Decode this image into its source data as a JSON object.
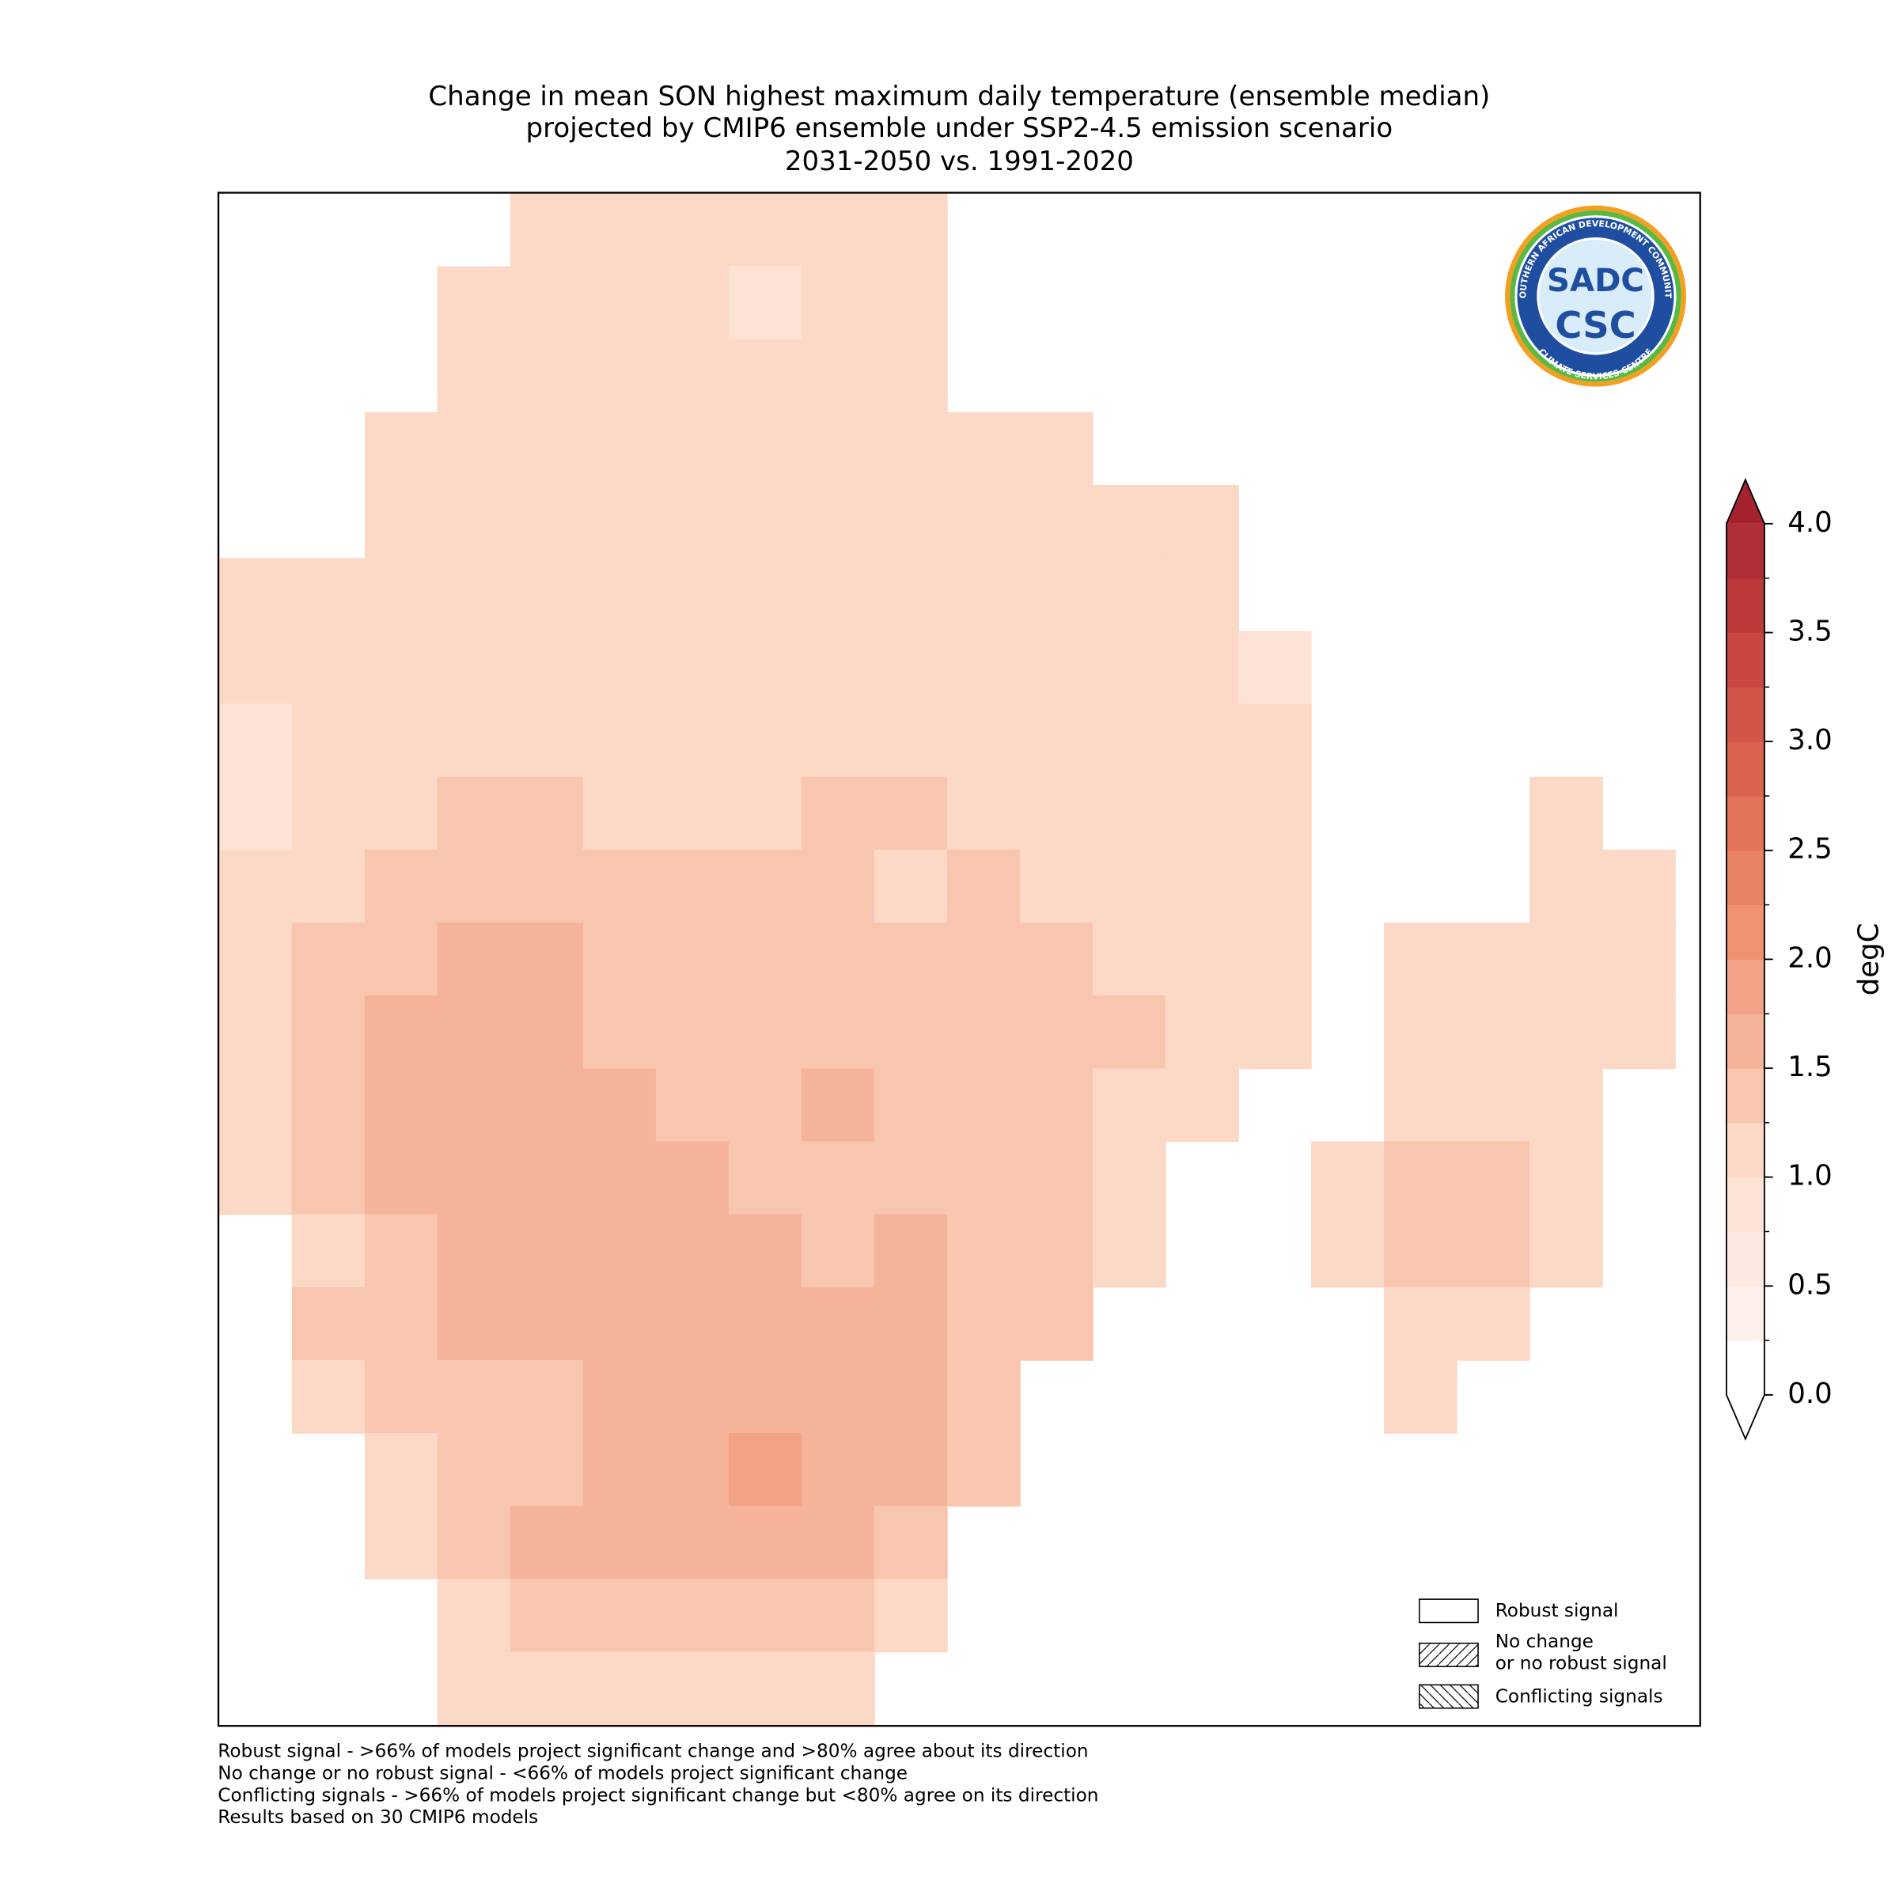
{
  "chart_data": {
    "type": "grid_map",
    "title": [
      "Change in mean SON highest maximum daily temperature (ensemble median)",
      "projected by CMIP6 ensemble under SSP2-4.5 emission scenario",
      "2031-2050 vs. 1991-2020"
    ],
    "values": [
      [
        null,
        null,
        null,
        null,
        1.0,
        1.0,
        1.0,
        1.0,
        1.0,
        1.0,
        null,
        null,
        null,
        null,
        null,
        null,
        null,
        null,
        null,
        null
      ],
      [
        null,
        null,
        null,
        1.0,
        1.0,
        1.0,
        1.0,
        0.9,
        1.0,
        1.1,
        null,
        null,
        null,
        null,
        null,
        null,
        null,
        null,
        null,
        null
      ],
      [
        null,
        null,
        null,
        1.0,
        1.0,
        1.0,
        1.0,
        1.0,
        1.0,
        1.0,
        null,
        null,
        null,
        null,
        null,
        null,
        null,
        null,
        null,
        null
      ],
      [
        null,
        null,
        1.0,
        1.0,
        1.0,
        1.0,
        1.0,
        1.0,
        1.0,
        1.1,
        1.1,
        1.1,
        null,
        null,
        null,
        null,
        null,
        null,
        null,
        null
      ],
      [
        null,
        null,
        1.1,
        1.1,
        1.1,
        1.0,
        1.0,
        1.0,
        1.0,
        1.0,
        1.1,
        1.1,
        1.1,
        1.0,
        null,
        null,
        null,
        null,
        null,
        null
      ],
      [
        1.0,
        1.0,
        1.0,
        1.1,
        1.2,
        1.1,
        1.1,
        1.1,
        1.1,
        1.1,
        1.1,
        1.1,
        1.1,
        1.0,
        null,
        null,
        null,
        null,
        null,
        null
      ],
      [
        1.0,
        1.0,
        1.1,
        1.1,
        1.2,
        1.1,
        1.1,
        1.1,
        1.1,
        1.1,
        1.1,
        1.2,
        1.1,
        1.1,
        0.9,
        null,
        null,
        null,
        null,
        null
      ],
      [
        0.9,
        1.0,
        1.1,
        1.2,
        1.1,
        1.2,
        1.2,
        1.2,
        1.2,
        1.2,
        1.2,
        1.2,
        1.1,
        1.1,
        1.0,
        null,
        null,
        null,
        null,
        null
      ],
      [
        0.9,
        1.1,
        1.2,
        1.3,
        1.3,
        1.2,
        1.2,
        1.2,
        1.3,
        1.3,
        1.2,
        1.2,
        1.1,
        1.1,
        1.0,
        null,
        null,
        null,
        1.0,
        null
      ],
      [
        1.1,
        1.2,
        1.3,
        1.3,
        1.4,
        1.3,
        1.3,
        1.3,
        1.3,
        1.2,
        1.3,
        1.2,
        1.1,
        1.1,
        1.0,
        null,
        null,
        null,
        1.0,
        1.0
      ],
      [
        1.2,
        1.3,
        1.4,
        1.5,
        1.5,
        1.4,
        1.4,
        1.4,
        1.3,
        1.3,
        1.4,
        1.3,
        1.2,
        1.1,
        1.0,
        null,
        1.1,
        1.1,
        1.0,
        1.0
      ],
      [
        1.1,
        1.3,
        1.5,
        1.5,
        1.5,
        1.4,
        1.4,
        1.4,
        1.4,
        1.4,
        1.4,
        1.3,
        1.3,
        1.1,
        1.0,
        null,
        1.2,
        1.1,
        1.1,
        1.0
      ],
      [
        1.0,
        1.3,
        1.5,
        1.5,
        1.5,
        1.5,
        1.4,
        1.4,
        1.5,
        1.4,
        1.4,
        1.3,
        1.2,
        1.1,
        null,
        null,
        1.2,
        1.2,
        1.2,
        null
      ],
      [
        1.1,
        1.4,
        1.5,
        1.5,
        1.5,
        1.5,
        1.5,
        1.4,
        1.4,
        1.4,
        1.3,
        1.3,
        1.2,
        null,
        null,
        1.2,
        1.3,
        1.3,
        1.1,
        null
      ],
      [
        null,
        1.2,
        1.4,
        1.5,
        1.5,
        1.5,
        1.5,
        1.5,
        1.4,
        1.5,
        1.4,
        1.3,
        1.1,
        null,
        null,
        1.2,
        1.3,
        1.3,
        1.1,
        null
      ],
      [
        null,
        1.3,
        1.4,
        1.5,
        1.5,
        1.5,
        1.5,
        1.6,
        1.5,
        1.5,
        1.4,
        1.3,
        null,
        null,
        null,
        null,
        1.1,
        1.1,
        null,
        null
      ],
      [
        null,
        1.2,
        1.3,
        1.4,
        1.4,
        1.5,
        1.6,
        1.7,
        1.7,
        1.5,
        1.3,
        null,
        null,
        null,
        null,
        null,
        1.0,
        null,
        null,
        null
      ],
      [
        null,
        null,
        1.1,
        1.3,
        1.4,
        1.5,
        1.7,
        1.8,
        1.7,
        1.5,
        1.3,
        null,
        null,
        null,
        null,
        null,
        null,
        null,
        null,
        null
      ],
      [
        null,
        null,
        1.2,
        1.3,
        1.5,
        1.5,
        1.6,
        1.7,
        1.6,
        1.4,
        null,
        null,
        null,
        null,
        null,
        null,
        null,
        null,
        null,
        null
      ],
      [
        null,
        null,
        null,
        1.2,
        1.4,
        1.4,
        1.4,
        1.4,
        1.3,
        1.2,
        null,
        null,
        null,
        null,
        null,
        null,
        null,
        null,
        null,
        null
      ],
      [
        null,
        null,
        null,
        1.1,
        1.2,
        1.2,
        1.2,
        1.1,
        1.0,
        null,
        null,
        null,
        null,
        null,
        null,
        null,
        null,
        null,
        null,
        null
      ]
    ],
    "colorbar": {
      "label": "degC",
      "levels": [
        0,
        0.25,
        0.5,
        0.75,
        1.0,
        1.25,
        1.5,
        1.75,
        2.0,
        2.25,
        2.5,
        2.75,
        3.0,
        3.25,
        3.5,
        3.75,
        4.0
      ],
      "colors": [
        "#ffffff",
        "#fdf0ea",
        "#fde9df",
        "#fce3d6",
        "#fbd9c6",
        "#f8c6af",
        "#f5b499",
        "#f2a285",
        "#ee9272",
        "#e88264",
        "#e27259",
        "#da6350",
        "#d25548",
        "#c84741",
        "#bd3a3b",
        "#b02e35"
      ],
      "extend_min_color": "#ffffff",
      "extend_max_color": "#a4222e",
      "ticks": [
        {
          "value": 0,
          "label": "0.0"
        },
        0.5,
        {
          "value": 1,
          "label": "1.0"
        },
        1.5,
        {
          "value": 2,
          "label": "2.0"
        },
        2.5,
        {
          "value": 3,
          "label": "3.0"
        },
        3.5,
        {
          "value": 4,
          "label": "4.0"
        }
      ]
    },
    "legend": [
      {
        "lines": [
          "Robust signal"
        ]
      },
      {
        "lines": [
          "No change",
          "or no robust signal"
        ]
      },
      {
        "lines": [
          "Conflicting signals"
        ]
      }
    ],
    "logo": {
      "top": "SOUTHERN AFRICAN DEVELOPMENT COMMUNITY",
      "bottom": "CLIMATE SERVICES CENTRE",
      "line1": "SADC",
      "line2": "CSC"
    },
    "notes": [
      "Robust signal - >66% of models project significant change and >80% agree about its direction",
      "No change or no robust signal - <66% of models project significant change",
      "Conflicting signals - >66% of models project significant change but <80% agree on its direction",
      "Results based on 30 CMIP6 models"
    ]
  }
}
